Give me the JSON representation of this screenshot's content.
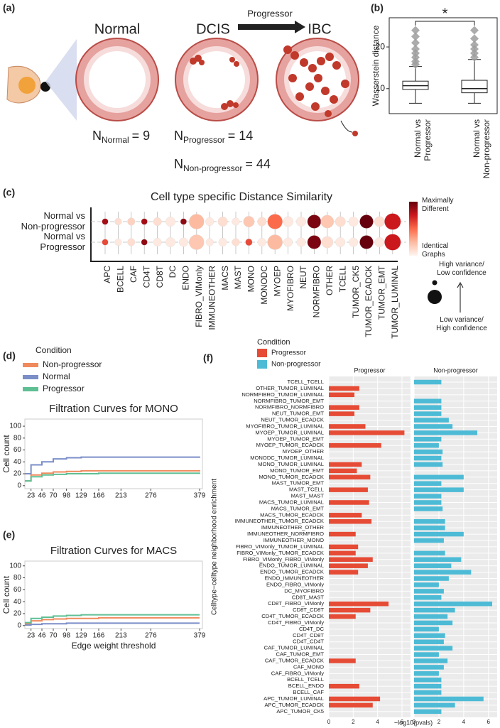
{
  "illustration": {
    "panel_label": "(a)",
    "stages": [
      "Normal",
      "DCIS",
      "IBC"
    ],
    "arrow_label": "Progressor",
    "counts": [
      {
        "symbol": "N",
        "subscript": "Normal",
        "equals": "= 9"
      },
      {
        "symbol": "N",
        "subscript": "Progressor",
        "equals": "= 14"
      },
      {
        "symbol": "N",
        "subscript": "Non-progressor",
        "equals": "= 44"
      }
    ]
  },
  "chart_data": [
    {
      "type": "box",
      "panel_label": "(b)",
      "ylabel": "Wasserstein distance",
      "categories": [
        [
          "Normal vs",
          "Progressor"
        ],
        [
          "Normal vs",
          "Non-progressor"
        ]
      ],
      "boxes": [
        {
          "low": 6.5,
          "q1": 9.8,
          "median": 10.7,
          "q3": 11.8,
          "high": 15.3,
          "outliers": [
            15.8,
            16.5,
            17.5,
            18.5,
            19.5,
            21,
            22.5,
            24
          ]
        },
        {
          "low": 6.5,
          "q1": 9,
          "median": 10,
          "q3": 12,
          "high": 17,
          "outliers": [
            17.5,
            18.5,
            19.5,
            20.5,
            22,
            24
          ]
        }
      ],
      "ylim": [
        4,
        27
      ],
      "yticks": [
        10,
        20
      ],
      "annotation": "*"
    },
    {
      "type": "dot",
      "panel_label": "(c)",
      "title": "Cell type specific Distance Similarity",
      "categories": [
        "APC",
        "BCELL",
        "CAF",
        "CD4T",
        "CD8T",
        "DC",
        "ENDO",
        "FIBRO_VIMonly",
        "IMMUNEOTHER",
        "MACS",
        "MAST",
        "MONO",
        "MONODC",
        "MYOEP",
        "MYOFIBRO",
        "NEUT",
        "NORMFIBRO",
        "OTHER",
        "TCELL",
        "TUMOR_CK5",
        "TUMOR_ECADCK",
        "TUMOR_EMT",
        "TUMOR_LUMINAL"
      ],
      "series": [
        {
          "name": [
            "Normal vs",
            "Non-progressor"
          ],
          "color_values": [
            0.85,
            0.1,
            0.15,
            0.85,
            0.1,
            0.05,
            0.9,
            0.25,
            0.05,
            0.1,
            0.05,
            0.2,
            0.1,
            0.5,
            0.05,
            0.05,
            0.95,
            0.2,
            0.1,
            0.05,
            1.0,
            0.1,
            0.75
          ],
          "size_values": [
            0.2,
            0.25,
            0.3,
            0.2,
            0.35,
            0.45,
            0.2,
            0.85,
            0.35,
            0.45,
            0.3,
            0.55,
            0.4,
            0.85,
            0.5,
            0.45,
            0.75,
            0.7,
            0.5,
            0.45,
            0.75,
            0.5,
            0.95
          ]
        },
        {
          "name": [
            "Normal vs",
            "Progressor"
          ],
          "color_values": [
            0.6,
            0.05,
            0.1,
            0.9,
            0.05,
            0.05,
            0.05,
            0.2,
            0.05,
            0.05,
            0.1,
            0.6,
            0.05,
            0.25,
            0.05,
            0.05,
            0.95,
            0.1,
            0.05,
            0.05,
            1.0,
            0.05,
            0.75
          ],
          "size_values": [
            0.2,
            0.25,
            0.3,
            0.2,
            0.35,
            0.45,
            0.4,
            0.85,
            0.3,
            0.35,
            0.3,
            0.25,
            0.35,
            0.85,
            0.4,
            0.4,
            0.75,
            0.6,
            0.45,
            0.4,
            0.75,
            0.45,
            0.95
          ]
        }
      ],
      "colormap": [
        "#fff5f0",
        "#fcbba1",
        "#fb6a4a",
        "#cb181d",
        "#67000d"
      ],
      "color_legend": {
        "high": [
          "Maximally",
          "Different"
        ],
        "low": [
          "Identical",
          "Graphs"
        ]
      },
      "size_legend": {
        "top": [
          "High variance/",
          "Low confidence"
        ],
        "bottom": [
          "Low variance/",
          "High confidence"
        ]
      }
    },
    {
      "type": "line",
      "panel_label": "(d)",
      "title": "Filtration Curves for MONO",
      "ylabel": "Cell count",
      "legend_title": "Condition",
      "x": [
        10,
        23,
        46,
        70,
        98,
        129,
        166,
        213,
        276,
        379
      ],
      "series": [
        {
          "name": "Non-progressor",
          "color": "#f08a5d",
          "values": [
            8,
            18,
            21,
            23,
            24,
            25,
            25,
            25,
            25,
            26
          ]
        },
        {
          "name": "Normal",
          "color": "#7b8ec8",
          "values": [
            20,
            35,
            40,
            45,
            47,
            48,
            48,
            48,
            48,
            49
          ]
        },
        {
          "name": "Progressor",
          "color": "#5fbf94",
          "values": [
            8,
            15,
            18,
            19,
            20,
            20,
            21,
            21,
            21,
            22
          ]
        }
      ],
      "xlim": [
        10,
        385
      ],
      "xticks": [
        23,
        46,
        70,
        98,
        129,
        166,
        213,
        276,
        379
      ],
      "ylim": [
        -5,
        112
      ],
      "yticks": [
        0,
        20,
        40,
        60,
        80,
        100
      ]
    },
    {
      "type": "line",
      "panel_label": "(e)",
      "title": "Filtration Curves for MACS",
      "ylabel": "Cell count",
      "xlabel": "Edge weight threshold",
      "x": [
        10,
        23,
        46,
        70,
        98,
        129,
        166,
        213,
        276,
        379
      ],
      "series": [
        {
          "color": "#f08a5d",
          "values": [
            3,
            8,
            10,
            11,
            12,
            12,
            13,
            13,
            13,
            13
          ]
        },
        {
          "color": "#7b8ec8",
          "values": [
            1,
            2,
            3,
            3,
            4,
            4,
            4,
            4,
            4,
            4
          ]
        },
        {
          "color": "#5fbf94",
          "values": [
            5,
            12,
            14,
            16,
            17,
            18,
            18,
            18,
            18,
            18
          ]
        }
      ],
      "xlim": [
        10,
        385
      ],
      "xticks": [
        23,
        46,
        70,
        98,
        129,
        166,
        213,
        276,
        379
      ],
      "ylim": [
        -5,
        108
      ],
      "yticks": [
        0,
        20,
        40,
        60,
        80,
        100
      ]
    },
    {
      "type": "hbar",
      "panel_label": "(f)",
      "legend_title": "Condition",
      "xlabel": "−log10(pvals)",
      "ylabel": "Celltype−celltype neighborhood enrichment",
      "categories": [
        "TCELL_TCELL",
        "OTHER_TUMOR_LUMINAL",
        "NORMFIBRO_TUMOR_LUMINAL",
        "NORMFIBRO_TUMOR_EMT",
        "NORMFIBRO_NORMFIBRO",
        "NEUT_TUMOR_EMT",
        "NEUT_TUMOR_ECADCK",
        "MYOFIBRO_TUMOR_LUMINAL",
        "MYOEP_TUMOR_LUMINAL",
        "MYOEP_TUMOR_EMT",
        "MYOEP_TUMOR_ECADCK",
        "MYOEP_OTHER",
        "MONODC_TUMOR_LUMINAL",
        "MONO_TUMOR_LUMINAL",
        "MONO_TUMOR_EMT",
        "MONO_TUMOR_ECADCK",
        "MAST_TUMOR_EMT",
        "MAST_TCELL",
        "MAST_MAST",
        "MACS_TUMOR_LUMINAL",
        "MACS_TUMOR_EMT",
        "MACS_TUMOR_ECADCK",
        "IMMUNEOTHER_TUMOR_ECADCK",
        "IMMUNEOTHER_OTHER",
        "IMMUNEOTHER_NORMFIBRO",
        "IMMUNEOTHER_MONO",
        "FIBRO_VIMonly_TUMOR_LUMINAL",
        "FIBRO_VIMonly_TUMOR_ECADCK",
        "FIBRO_VIMonly_FIBRO_VIMonly",
        "ENDO_TUMOR_LUMINAL",
        "ENDO_TUMOR_ECADCK",
        "ENDO_IMMUNEOTHER",
        "ENDO_FIBRO_VIMonly",
        "DC_MYOFIBRO",
        "CD8T_MAST",
        "CD8T_FIBRO_VIMonly",
        "CD8T_CD8T",
        "CD4T_TUMOR_ECADCK",
        "CD4T_FIBRO_VIMonly",
        "CD4T_DC",
        "CD4T_CD8T",
        "CD4T_CD4T",
        "CAF_TUMOR_LUMINAL",
        "CAF_TUMOR_EMT",
        "CAF_TUMOR_ECADCK",
        "CAF_MONO",
        "CAF_FIBRO_VIMonly",
        "BCELL_TCELL",
        "BCELL_ENDO",
        "BCELL_CAF",
        "APC_TUMOR_LUMINAL",
        "APC_TUMOR_ECADCK",
        "APC_TUMOR_CK5"
      ],
      "series": [
        {
          "name": "Progressor",
          "color": "#e64b35",
          "values": [
            null,
            2.5,
            2.1,
            null,
            2.5,
            2.1,
            null,
            3.0,
            6.2,
            null,
            4.3,
            null,
            null,
            2.7,
            2.3,
            3.4,
            null,
            3.2,
            null,
            3.3,
            null,
            2.7,
            3.5,
            null,
            2.2,
            null,
            2.4,
            2.2,
            3.6,
            3.2,
            2.4,
            null,
            null,
            null,
            null,
            4.9,
            3.4,
            2.2,
            null,
            null,
            null,
            null,
            null,
            null,
            2.2,
            null,
            null,
            null,
            2.5,
            null,
            4.2,
            3.6,
            null
          ]
        },
        {
          "name": "Non-progressor",
          "color": "#4dbbd5",
          "values": [
            2.2,
            null,
            null,
            2.2,
            2.2,
            2.2,
            2.8,
            3.1,
            5.1,
            2.2,
            2.0,
            2.3,
            2.2,
            2.3,
            null,
            4.0,
            2.2,
            4.0,
            2.2,
            2.2,
            2.3,
            null,
            2.5,
            2.5,
            4.0,
            2.4,
            null,
            2.5,
            3.8,
            3.0,
            4.6,
            2.8,
            2.0,
            2.4,
            2.2,
            6.3,
            3.3,
            2.7,
            3.1,
            2.0,
            2.5,
            2.4,
            3.1,
            2.0,
            2.7,
            2.4,
            2.0,
            2.2,
            2.2,
            2.2,
            5.6,
            3.3,
            2.2
          ]
        }
      ],
      "xlim": [
        0,
        6.7
      ],
      "xticks": [
        0,
        2,
        4,
        6
      ]
    }
  ]
}
